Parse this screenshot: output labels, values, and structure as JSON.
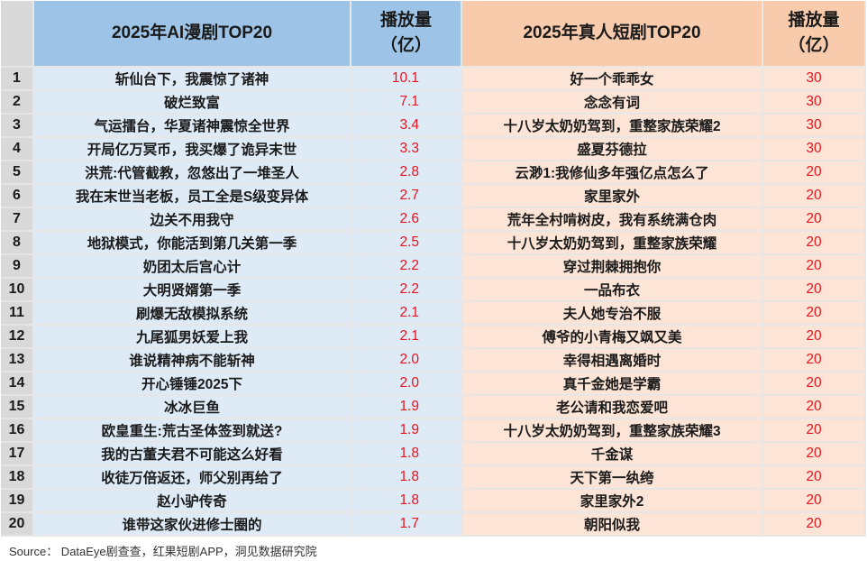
{
  "table": {
    "headers": {
      "rank": "",
      "ai_title": "2025年AI漫剧TOP20",
      "ai_value": "播放量（亿）",
      "ai_value_line1": "播放量",
      "ai_value_line2": "（亿）",
      "real_title": "2025年真人短剧TOP20",
      "real_value_line1": "播放量",
      "real_value_line2": "（亿）"
    },
    "rows": [
      {
        "rank": "1",
        "ai_title": "斩仙台下，我震惊了诸神",
        "ai_value": "10.1",
        "real_title": "好一个乖乖女",
        "real_value": "30"
      },
      {
        "rank": "2",
        "ai_title": "破烂致富",
        "ai_value": "7.1",
        "real_title": "念念有词",
        "real_value": "30"
      },
      {
        "rank": "3",
        "ai_title": "气运擂台，华夏诸神震惊全世界",
        "ai_value": "3.4",
        "real_title": "十八岁太奶奶驾到，重整家族荣耀2",
        "real_value": "30"
      },
      {
        "rank": "4",
        "ai_title": "开局亿万冥币，我买爆了诡异末世",
        "ai_value": "3.3",
        "real_title": "盛夏芬德拉",
        "real_value": "30"
      },
      {
        "rank": "5",
        "ai_title": "洪荒:代管截教，忽悠出了一堆圣人",
        "ai_value": "2.8",
        "real_title": "云渺1:我修仙多年强亿点怎么了",
        "real_value": "20"
      },
      {
        "rank": "6",
        "ai_title": "我在末世当老板，员工全是S级变异体",
        "ai_value": "2.7",
        "real_title": "家里家外",
        "real_value": "20"
      },
      {
        "rank": "7",
        "ai_title": "边关不用我守",
        "ai_value": "2.6",
        "real_title": "荒年全村啃树皮，我有系统满仓肉",
        "real_value": "20"
      },
      {
        "rank": "8",
        "ai_title": "地狱模式，你能活到第几关第一季",
        "ai_value": "2.5",
        "real_title": "十八岁太奶奶驾到，重整家族荣耀",
        "real_value": "20"
      },
      {
        "rank": "9",
        "ai_title": "奶团太后宫心计",
        "ai_value": "2.2",
        "real_title": "穿过荆棘拥抱你",
        "real_value": "20"
      },
      {
        "rank": "10",
        "ai_title": "大明贤婿第一季",
        "ai_value": "2.2",
        "real_title": "一品布衣",
        "real_value": "20"
      },
      {
        "rank": "11",
        "ai_title": "刷爆无敌模拟系统",
        "ai_value": "2.1",
        "real_title": "夫人她专治不服",
        "real_value": "20"
      },
      {
        "rank": "12",
        "ai_title": "九尾狐男妖爱上我",
        "ai_value": "2.1",
        "real_title": "傅爷的小青梅又飒又美",
        "real_value": "20"
      },
      {
        "rank": "13",
        "ai_title": "谁说精神病不能斩神",
        "ai_value": "2.0",
        "real_title": "幸得相遇离婚时",
        "real_value": "20"
      },
      {
        "rank": "14",
        "ai_title": "开心锤锤2025下",
        "ai_value": "2.0",
        "real_title": "真千金她是学霸",
        "real_value": "20"
      },
      {
        "rank": "15",
        "ai_title": "冰冰巨鱼",
        "ai_value": "1.9",
        "real_title": "老公请和我恋爱吧",
        "real_value": "20"
      },
      {
        "rank": "16",
        "ai_title": "欧皇重生:荒古圣体签到就送?",
        "ai_value": "1.9",
        "real_title": "十八岁太奶奶驾到，重整家族荣耀3",
        "real_value": "20"
      },
      {
        "rank": "17",
        "ai_title": "我的古董夫君不可能这么好看",
        "ai_value": "1.8",
        "real_title": "千金谋",
        "real_value": "20"
      },
      {
        "rank": "18",
        "ai_title": "收徒万倍返还，师父别再给了",
        "ai_value": "1.8",
        "real_title": "天下第一纨绔",
        "real_value": "20"
      },
      {
        "rank": "19",
        "ai_title": "赵小驴传奇",
        "ai_value": "1.8",
        "real_title": "家里家外2",
        "real_value": "20"
      },
      {
        "rank": "20",
        "ai_title": "谁带这家伙进修士圈的",
        "ai_value": "1.7",
        "real_title": "朝阳似我",
        "real_value": "20"
      }
    ]
  },
  "footer": {
    "source": "Source： DataEye剧查查，红果短剧APP，洞见数据研究院"
  },
  "colors": {
    "ai_header": "#9dc3e6",
    "ai_row": "#deebf7",
    "real_header": "#f8cbad",
    "real_row": "#fce4d6",
    "rank_column": "#d9d9d9",
    "value_text": "#e8141e"
  }
}
